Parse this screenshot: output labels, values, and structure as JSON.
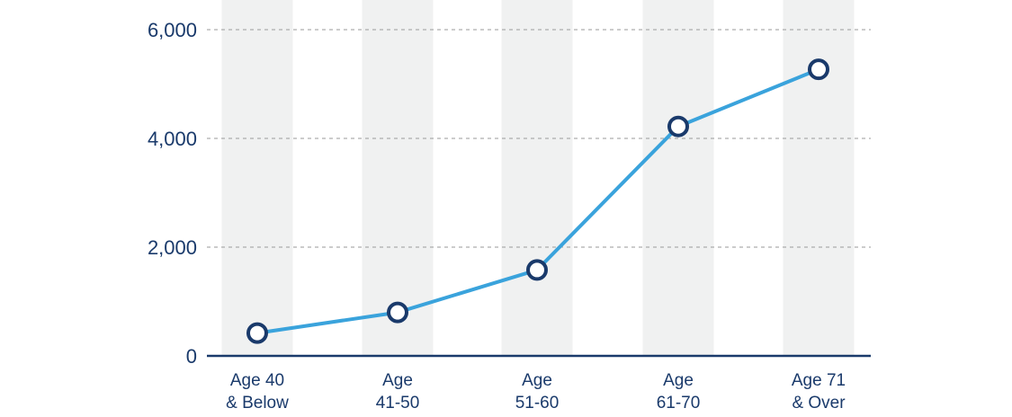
{
  "chart_data": {
    "type": "line",
    "categories": [
      [
        "Age 40",
        "& Below"
      ],
      [
        "Age",
        "41-50"
      ],
      [
        "Age",
        "51-60"
      ],
      [
        "Age",
        "61-70"
      ],
      [
        "Age 71",
        "& Over"
      ]
    ],
    "series": [
      {
        "values": [
          420,
          800,
          1580,
          4220,
          5270
        ]
      }
    ],
    "ylim": [
      0,
      6000
    ],
    "yticks": [
      "0",
      "2,000",
      "4,000",
      "6,000"
    ],
    "ytick_values": [
      0,
      2000,
      4000,
      6000
    ],
    "grid": true,
    "band_color": "#f0f1f1",
    "line_color": "#3aa3dc",
    "marker_stroke": "#1a3a6b",
    "axis_color": "#1a3a6b"
  }
}
